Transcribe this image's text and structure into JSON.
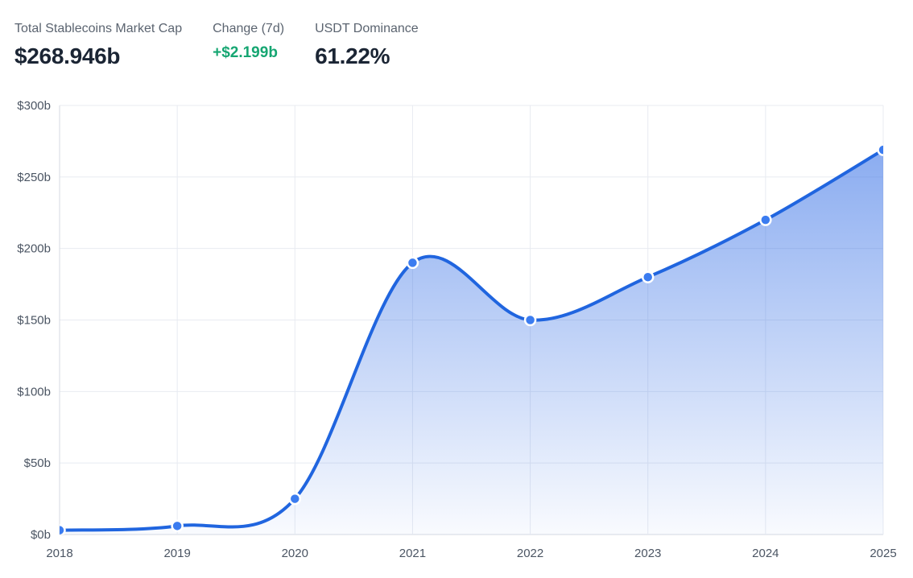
{
  "header": {
    "stats": [
      {
        "label": "Total Stablecoins Market Cap",
        "value": "$268.946b"
      },
      {
        "label": "Change (7d)",
        "value": "+$2.199b",
        "direction": "positive"
      },
      {
        "label": "USDT Dominance",
        "value": "61.22%"
      }
    ]
  },
  "colors": {
    "line": "#2065df",
    "dot": "#3b7cf0",
    "dot_ring": "#ffffff",
    "area_base": "#2f6be5",
    "grid": "#e8ebf1",
    "axis": "#d6dae1",
    "tick_text": "#4b5563",
    "label_text": "#5b6470",
    "value_text": "#1b2534",
    "positive": "#16a672",
    "background": "#ffffff"
  },
  "chart_data": {
    "type": "area",
    "title": "Total Stablecoins Market Cap",
    "categories": [
      "2018",
      "2019",
      "2020",
      "2021",
      "2022",
      "2023",
      "2024",
      "2025"
    ],
    "values": [
      3,
      6,
      25,
      190,
      150,
      180,
      220,
      268.946
    ],
    "units": "billions USD",
    "xlabel": "",
    "ylabel": "",
    "ylim": [
      0,
      300
    ],
    "ytick_step": 50,
    "ytick_labels": [
      "$0b",
      "$50b",
      "$100b",
      "$150b",
      "$200b",
      "$250b",
      "$300b"
    ],
    "grid": true,
    "smooth": true,
    "legend_position": "none",
    "markers": true
  }
}
